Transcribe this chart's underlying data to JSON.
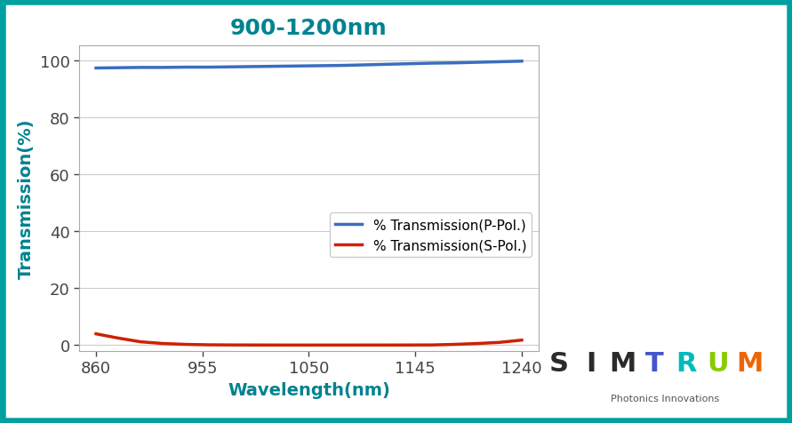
{
  "title": "900-1200nm",
  "title_color": "#00838F",
  "xlabel": "Wavelength(nm)",
  "ylabel": "Transmission(%)",
  "xlabel_color": "#00838F",
  "ylabel_color": "#00838F",
  "xlim": [
    845,
    1255
  ],
  "ylim": [
    -2,
    105
  ],
  "xticks": [
    860,
    955,
    1050,
    1145,
    1240
  ],
  "yticks": [
    0,
    20,
    40,
    60,
    80,
    100
  ],
  "background_color": "#ffffff",
  "border_color": "#00A0A0",
  "border_width": 6,
  "grid_color": "#cccccc",
  "p_pol_color": "#3A6EBF",
  "s_pol_color": "#CC2200",
  "p_pol_label": "% Transmission(P-Pol.)",
  "s_pol_label": "% Transmission(S-Pol.)",
  "p_pol_x": [
    860,
    880,
    900,
    920,
    940,
    960,
    980,
    1000,
    1020,
    1040,
    1060,
    1080,
    1100,
    1120,
    1140,
    1160,
    1180,
    1200,
    1220,
    1240
  ],
  "p_pol_y": [
    97.2,
    97.3,
    97.4,
    97.4,
    97.5,
    97.5,
    97.6,
    97.7,
    97.8,
    97.9,
    98.0,
    98.1,
    98.3,
    98.5,
    98.7,
    98.9,
    99.0,
    99.2,
    99.4,
    99.6
  ],
  "s_pol_x": [
    860,
    880,
    900,
    920,
    940,
    960,
    980,
    1000,
    1020,
    1040,
    1060,
    1080,
    1100,
    1120,
    1140,
    1160,
    1180,
    1200,
    1220,
    1240
  ],
  "s_pol_y": [
    4.0,
    2.5,
    1.2,
    0.6,
    0.3,
    0.15,
    0.1,
    0.08,
    0.07,
    0.06,
    0.06,
    0.06,
    0.07,
    0.07,
    0.08,
    0.1,
    0.3,
    0.6,
    1.0,
    1.8
  ],
  "tick_color": "#444444",
  "tick_fontsize": 13,
  "axis_label_fontsize": 14,
  "title_fontsize": 18,
  "legend_fontsize": 11,
  "simtrum_text": "SIMTRUM",
  "simtrum_sub": "Photonics Innovations"
}
